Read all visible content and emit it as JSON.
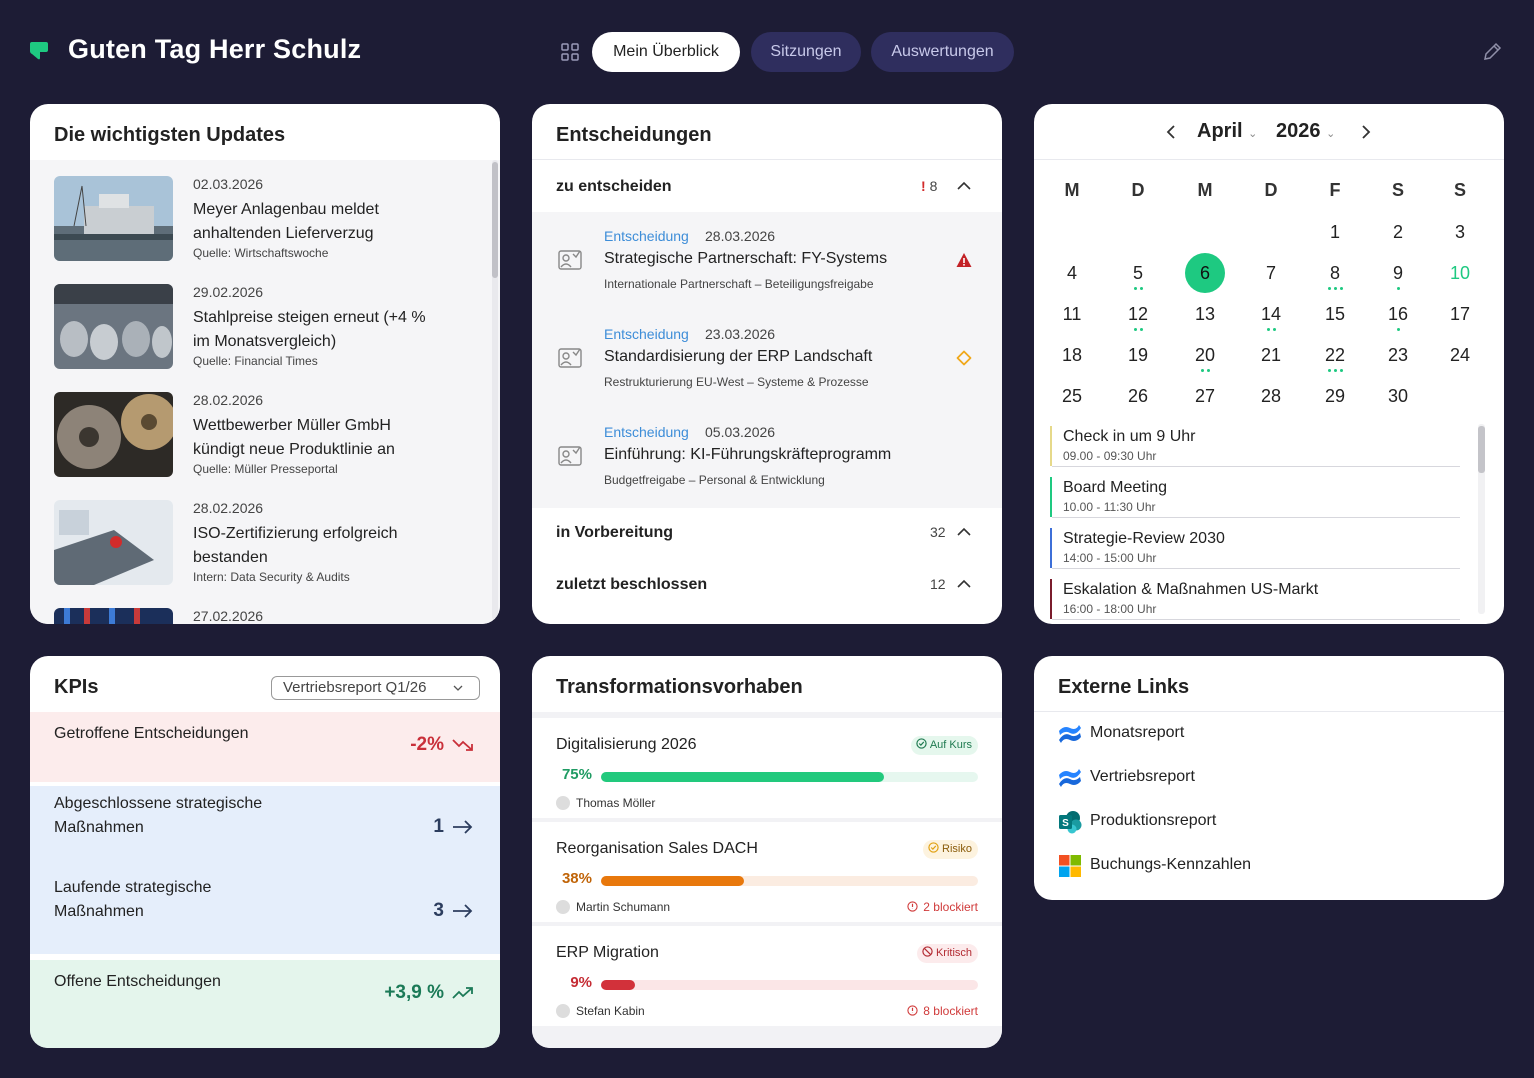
{
  "header": {
    "greeting": "Guten Tag Herr Schulz",
    "tabs": [
      {
        "label": "Mein Überblick",
        "active": true
      },
      {
        "label": "Sitzungen",
        "active": false
      },
      {
        "label": "Auswertungen",
        "active": false
      }
    ],
    "icons": [
      "brand-logo-icon",
      "grid-icon",
      "pencil-icon"
    ],
    "colors": {
      "background": "#1d1c35",
      "accent": "#1ec981",
      "tab_inactive": "#2f2e5e"
    }
  },
  "updates": {
    "title": "Die wichtigsten Updates",
    "items": [
      {
        "date": "02.03.2026",
        "text": "Meyer Anlagenbau meldet anhaltenden Lieferverzug",
        "source": "Quelle: Wirtschaftswoche"
      },
      {
        "date": "29.02.2026",
        "text": "Stahlpreise steigen erneut (+4 % im Monatsvergleich)",
        "source": "Quelle: Financial Times"
      },
      {
        "date": "28.02.2026",
        "text": "Wettbewerber Müller GmbH kündigt neue Produktlinie an",
        "source": "Quelle: Müller Presseportal"
      },
      {
        "date": "28.02.2026",
        "text": "ISO-Zertifizierung erfolgreich bestanden",
        "source": "Intern: Data Security & Audits"
      },
      {
        "date": "27.02.2026",
        "text": "",
        "source": ""
      }
    ]
  },
  "decisions": {
    "title": "Entscheidungen",
    "sections": [
      {
        "label": "zu entscheiden",
        "count": "8",
        "flag": "!"
      },
      {
        "label": "in Vorbereitung",
        "count": "32"
      },
      {
        "label": "zuletzt beschlossen",
        "count": "12"
      }
    ],
    "items": [
      {
        "type": "Entscheidung",
        "date": "28.03.2026",
        "title": "Strategische Partnerschaft: FY-Systems",
        "subtitle": "Internationale Partnerschaft – Beteiligungsfreigabe",
        "marker": "warning-triangle-icon"
      },
      {
        "type": "Entscheidung",
        "date": "23.03.2026",
        "title": "Standardisierung der ERP Landschaft",
        "subtitle": "Restrukturierung EU-West – Systeme & Prozesse",
        "marker": "orange-diamond-icon"
      },
      {
        "type": "Entscheidung",
        "date": "05.03.2026",
        "title": "Einführung: KI-Führungskräfteprogramm",
        "subtitle": "Budgetfreigabe – Personal & Entwicklung",
        "marker": ""
      }
    ]
  },
  "calendar": {
    "month": "April",
    "year": "2026",
    "weekdays": [
      "M",
      "D",
      "M",
      "D",
      "F",
      "S",
      "S"
    ],
    "weeks": [
      [
        {
          "d": ""
        },
        {
          "d": ""
        },
        {
          "d": ""
        },
        {
          "d": ""
        },
        {
          "d": "1"
        },
        {
          "d": "2"
        },
        {
          "d": "3"
        }
      ],
      [
        {
          "d": "4"
        },
        {
          "d": "5",
          "dots": 2
        },
        {
          "d": "6",
          "selected": true
        },
        {
          "d": "7"
        },
        {
          "d": "8",
          "dots": 3
        },
        {
          "d": "9",
          "dots": 1
        },
        {
          "d": "10",
          "highlight": true
        }
      ],
      [
        {
          "d": "11"
        },
        {
          "d": "12",
          "dots": 2
        },
        {
          "d": "13"
        },
        {
          "d": "14",
          "dots": 2
        },
        {
          "d": "15"
        },
        {
          "d": "16",
          "dots": 1
        },
        {
          "d": "17"
        }
      ],
      [
        {
          "d": "18"
        },
        {
          "d": "19"
        },
        {
          "d": "20",
          "dots": 2
        },
        {
          "d": "21"
        },
        {
          "d": "22",
          "dots": 3
        },
        {
          "d": "23"
        },
        {
          "d": "24"
        }
      ],
      [
        {
          "d": "25"
        },
        {
          "d": "26"
        },
        {
          "d": "27"
        },
        {
          "d": "28"
        },
        {
          "d": "29"
        },
        {
          "d": "30"
        },
        {
          "d": ""
        }
      ]
    ],
    "events": [
      {
        "title": "Check in um 9 Uhr",
        "time": "09.00 - 09:30 Uhr",
        "color": "#e6d98a"
      },
      {
        "title": "Board Meeting",
        "time": "10.00 - 11:30 Uhr",
        "color": "#1ec981"
      },
      {
        "title": "Strategie-Review 2030",
        "time": "14:00 - 15:00 Uhr",
        "color": "#3d6fd8"
      },
      {
        "title": "Eskalation & Maßnahmen US-Markt",
        "time": "16:00 - 18:00 Uhr",
        "color": "#7a1c2c"
      }
    ]
  },
  "kpis": {
    "title": "KPIs",
    "report": "Vertriebsreport Q1/26",
    "items": [
      {
        "label": "Getroffene Entscheidungen",
        "value": "-2%",
        "trend": "down",
        "bg": "#fcecec",
        "color": "#c9303a"
      },
      {
        "label": "Abgeschlossene strategische Maßnahmen",
        "value": "1",
        "trend": "right",
        "bg": "#e5eefb",
        "color": "#2c3d5e"
      },
      {
        "label": "Laufende strategische Maßnahmen",
        "value": "3",
        "trend": "right",
        "bg": "#e5eefb",
        "color": "#2c3d5e"
      },
      {
        "label": "Offene Entscheidungen",
        "value": "+3,9 %",
        "trend": "up",
        "bg": "#e4f5ec",
        "color": "#1b7a57"
      }
    ]
  },
  "transformation": {
    "title": "Transformationsvorhaben",
    "items": [
      {
        "name": "Digitalisierung 2026",
        "status": "Auf Kurs",
        "progress": 0.75,
        "progress_label": "75%",
        "owner": "Thomas Möller",
        "blocked": "",
        "color": "#22c97d",
        "track": "#e6f7ef",
        "badge_bg": "#e5f7ed",
        "badge_color": "#1f7a50"
      },
      {
        "name": "Reorganisation Sales DACH",
        "status": "Risiko",
        "progress": 0.38,
        "progress_label": "38%",
        "owner": "Martin Schumann",
        "blocked": "2 blockiert",
        "color": "#e8780c",
        "track": "#fbece1",
        "badge_bg": "#fdf3df",
        "badge_color": "#8a5c0a"
      },
      {
        "name": "ERP Migration",
        "status": "Kritisch",
        "progress": 0.09,
        "progress_label": "9%",
        "owner": "Stefan Kabin",
        "blocked": "8 blockiert",
        "color": "#d2313a",
        "track": "#fbe6e7",
        "badge_bg": "#fcebec",
        "badge_color": "#b22a32"
      }
    ]
  },
  "links": {
    "title": "Externe Links",
    "items": [
      {
        "label": "Monatsreport",
        "icon": "confluence-icon"
      },
      {
        "label": "Vertriebsreport",
        "icon": "confluence-icon"
      },
      {
        "label": "Produktionsreport",
        "icon": "sharepoint-icon"
      },
      {
        "label": "Buchungs-Kennzahlen",
        "icon": "microsoft-icon"
      }
    ]
  }
}
